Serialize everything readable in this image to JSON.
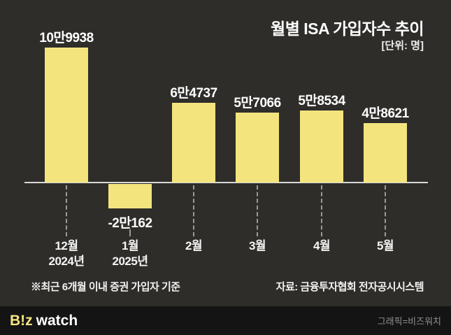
{
  "header": {
    "title": "월별 ISA 가입자수 추이",
    "unit": "[단위: 명]"
  },
  "chart_data": {
    "type": "bar",
    "title": "월별 ISA 가입자수 추이",
    "unit_label": "[단위: 명]",
    "categories": [
      [
        "12월",
        "2024년"
      ],
      [
        "1월",
        "2025년"
      ],
      [
        "2월"
      ],
      [
        "3월"
      ],
      [
        "4월"
      ],
      [
        "5월"
      ]
    ],
    "values": [
      109938,
      -20162,
      64737,
      57066,
      58534,
      48621
    ],
    "value_labels": [
      "10만9938",
      "-2만162",
      "6만4737",
      "5만7066",
      "5만8534",
      "4만8621"
    ],
    "xlabel": "",
    "ylabel": "",
    "ylim": [
      -25000,
      115000
    ],
    "grid": false,
    "legend": "none",
    "bar_color": "#f3e47e",
    "baseline_color": "#d9d9d9",
    "dash_color": "#9a9a9a"
  },
  "footnotes": {
    "left": "※최근 6개월 이내 증권 가입자 기준",
    "right": "자료: 금융투자협회 전자공시시스템"
  },
  "footer": {
    "logo_biz": "B!z",
    "logo_watch": "watch",
    "credit": "그래픽=비즈워치"
  },
  "colors": {
    "background": "#2e2d2a",
    "footer_background": "#141414",
    "bar": "#f3e47e",
    "text": "#ffffff",
    "credit_text": "#8f8f8f"
  }
}
